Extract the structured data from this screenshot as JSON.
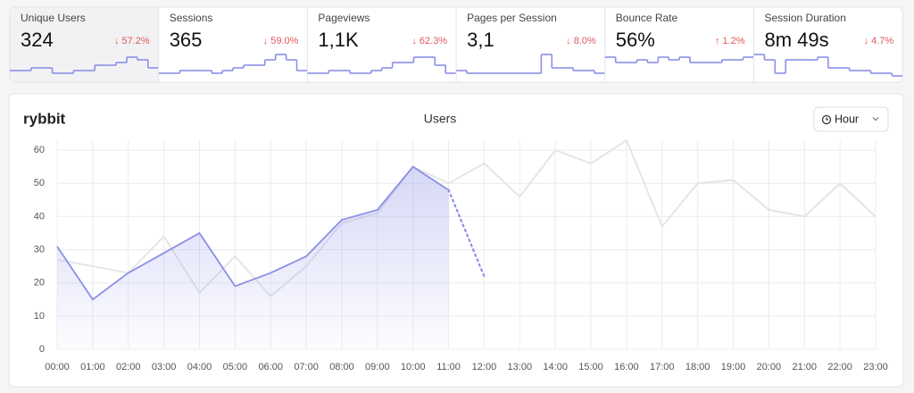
{
  "cards": [
    {
      "label": "Unique Users",
      "value": "324",
      "change": "↓ 57.2%",
      "sparkline": [
        3,
        3,
        4,
        4,
        2,
        2,
        3,
        3,
        5,
        5,
        6,
        8,
        7,
        4
      ]
    },
    {
      "label": "Sessions",
      "value": "365",
      "change": "↓ 59.0%",
      "sparkline": [
        2,
        2,
        3,
        3,
        3,
        2,
        3,
        4,
        5,
        5,
        7,
        9,
        7,
        3
      ]
    },
    {
      "label": "Pageviews",
      "value": "1,1K",
      "change": "↓ 62.3%",
      "sparkline": [
        2,
        2,
        3,
        3,
        2,
        2,
        3,
        4,
        6,
        6,
        8,
        8,
        5,
        2
      ]
    },
    {
      "label": "Pages per Session",
      "value": "3,1",
      "change": "↓ 8.0%",
      "sparkline": [
        3,
        2,
        2,
        2,
        2,
        2,
        2,
        2,
        9,
        4,
        4,
        3,
        3,
        2
      ]
    },
    {
      "label": "Bounce Rate",
      "value": "56%",
      "change": "↑ 1.2%",
      "sparkline": [
        8,
        6,
        6,
        7,
        6,
        8,
        7,
        8,
        6,
        6,
        6,
        7,
        7,
        8
      ]
    },
    {
      "label": "Session Duration",
      "value": "8m 49s",
      "change": "↓ 4.7%",
      "sparkline": [
        9,
        7,
        2,
        7,
        7,
        7,
        8,
        4,
        4,
        3,
        3,
        2,
        2,
        1
      ]
    }
  ],
  "brand": "rybbit",
  "interval_button": "Hour",
  "chart": {
    "type": "line",
    "title": "Users",
    "categories": [
      "00:00",
      "01:00",
      "02:00",
      "03:00",
      "04:00",
      "05:00",
      "06:00",
      "07:00",
      "08:00",
      "09:00",
      "10:00",
      "11:00",
      "12:00",
      "13:00",
      "14:00",
      "15:00",
      "16:00",
      "17:00",
      "18:00",
      "19:00",
      "20:00",
      "21:00",
      "22:00",
      "23:00"
    ],
    "current": {
      "color": "#8b90e6",
      "values": [
        31,
        15,
        23,
        29,
        35,
        19,
        23,
        28,
        39,
        42,
        55,
        48,
        null,
        null,
        null,
        null,
        null,
        null,
        null,
        null,
        null,
        null,
        null,
        null
      ]
    },
    "projected": {
      "color": "#8b90e6",
      "values": [
        null,
        null,
        null,
        null,
        null,
        null,
        null,
        null,
        null,
        null,
        null,
        null,
        22,
        null,
        null,
        null,
        null,
        null,
        null,
        null,
        null,
        null,
        null,
        null
      ]
    },
    "previous": {
      "color": "#e3e3e6",
      "values": [
        27,
        25,
        23,
        34,
        17,
        28,
        16,
        25,
        38,
        41,
        55,
        50,
        56,
        46,
        60,
        56,
        63,
        37,
        50,
        51,
        42,
        40,
        50,
        40
      ]
    },
    "ylim": [
      0,
      63
    ],
    "yticks": [
      0,
      10,
      20,
      30,
      40,
      50,
      60
    ],
    "grid": true
  }
}
